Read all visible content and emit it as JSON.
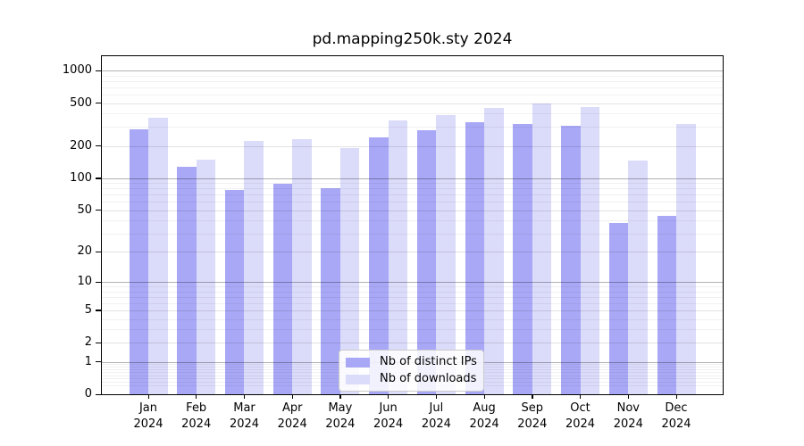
{
  "title": "pd.mapping250k.sty 2024",
  "colors": {
    "ips_bar": "#a8a8f6",
    "downloads_bar": "#dbdbfa",
    "decade_grid": "rgba(0,0,0,0.30)",
    "labeled_grid": "rgba(0,0,0,0.115)",
    "minor_grid": "rgba(0,0,0,0.055)",
    "axis_line": "#000000",
    "legend_border": "#cccccc"
  },
  "legend": {
    "items": [
      {
        "label": "Nb of distinct IPs",
        "series_key": "ips"
      },
      {
        "label": "Nb of downloads",
        "series_key": "downloads"
      }
    ],
    "position": "lower center"
  },
  "chart_data": {
    "type": "bar",
    "title": "pd.mapping250k.sty 2024",
    "categories": [
      "Jan 2024",
      "Feb 2024",
      "Mar 2024",
      "Apr 2024",
      "May 2024",
      "Jun 2024",
      "Jul 2024",
      "Aug 2024",
      "Sep 2024",
      "Oct 2024",
      "Nov 2024",
      "Dec 2024"
    ],
    "months": [
      "Jan",
      "Feb",
      "Mar",
      "Apr",
      "May",
      "Jun",
      "Jul",
      "Aug",
      "Sep",
      "Oct",
      "Nov",
      "Dec"
    ],
    "year": "2024",
    "series": [
      {
        "name": "Nb of distinct IPs",
        "key": "ips",
        "values": [
          285,
          127,
          77,
          88,
          81,
          240,
          280,
          330,
          320,
          310,
          38,
          44
        ]
      },
      {
        "name": "Nb of downloads",
        "key": "downloads",
        "values": [
          370,
          150,
          222,
          232,
          193,
          345,
          385,
          450,
          500,
          465,
          145,
          322
        ]
      }
    ],
    "yscale": "log1p",
    "ylim": [
      0,
      1366
    ],
    "y_ticks": [
      1000,
      500,
      200,
      100,
      50,
      20,
      10,
      5,
      2,
      1,
      0
    ],
    "decade_gridlines": [
      1000,
      100,
      10,
      1
    ],
    "labeled_gridlines": [
      500,
      200,
      50,
      20,
      5,
      2
    ],
    "minor_gridlines": [
      900,
      800,
      700,
      600,
      400,
      300,
      90,
      80,
      70,
      60,
      40,
      30,
      9,
      8,
      7,
      6,
      4,
      3,
      0.9,
      0.8,
      0.7,
      0.6,
      0.5,
      0.4,
      0.3,
      0.2
    ],
    "grid_on": true,
    "grid_above_bars": true,
    "legend_position": "lower center"
  }
}
